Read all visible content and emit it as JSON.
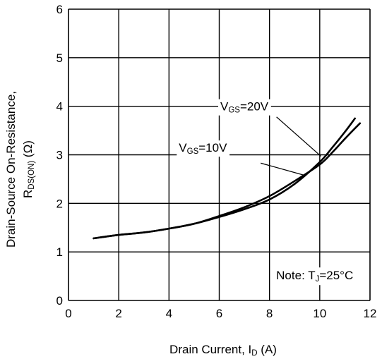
{
  "chart_data": {
    "type": "line",
    "xlabel": {
      "text": "Drain Current, I",
      "sub": "D",
      "tail": " (A)"
    },
    "ylabel": {
      "line1": "Drain-Source On-Resistance,",
      "line2_main": "R",
      "line2_sub": "DS(ON)",
      "line2_tail": " (Ω)"
    },
    "x_ticks": [
      "0",
      "2",
      "4",
      "6",
      "8",
      "10",
      "12"
    ],
    "y_ticks": [
      "0",
      "1",
      "2",
      "3",
      "4",
      "5",
      "6"
    ],
    "xlim": [
      0,
      12
    ],
    "ylim": [
      0,
      6
    ],
    "grid": true,
    "series": [
      {
        "name": {
          "main": "V",
          "sub": "GS",
          "tail": "=20V"
        },
        "x": [
          1.0,
          2.0,
          3.0,
          4.0,
          5.0,
          6.0,
          7.0,
          8.0,
          9.0,
          10.0,
          10.5,
          11.0,
          11.4
        ],
        "y": [
          1.28,
          1.35,
          1.4,
          1.48,
          1.58,
          1.72,
          1.88,
          2.08,
          2.4,
          2.85,
          3.15,
          3.47,
          3.75
        ]
      },
      {
        "name": {
          "main": "V",
          "sub": "GS",
          "tail": "=10V"
        },
        "x": [
          1.0,
          2.0,
          3.0,
          4.0,
          5.0,
          6.0,
          7.0,
          8.0,
          9.0,
          10.0,
          10.5,
          11.0,
          11.6
        ],
        "y": [
          1.28,
          1.35,
          1.4,
          1.48,
          1.58,
          1.74,
          1.92,
          2.15,
          2.46,
          2.8,
          3.05,
          3.33,
          3.65
        ]
      }
    ],
    "annotation": {
      "main": "Note: T",
      "sub": "J",
      "tail": "=25°C"
    }
  }
}
